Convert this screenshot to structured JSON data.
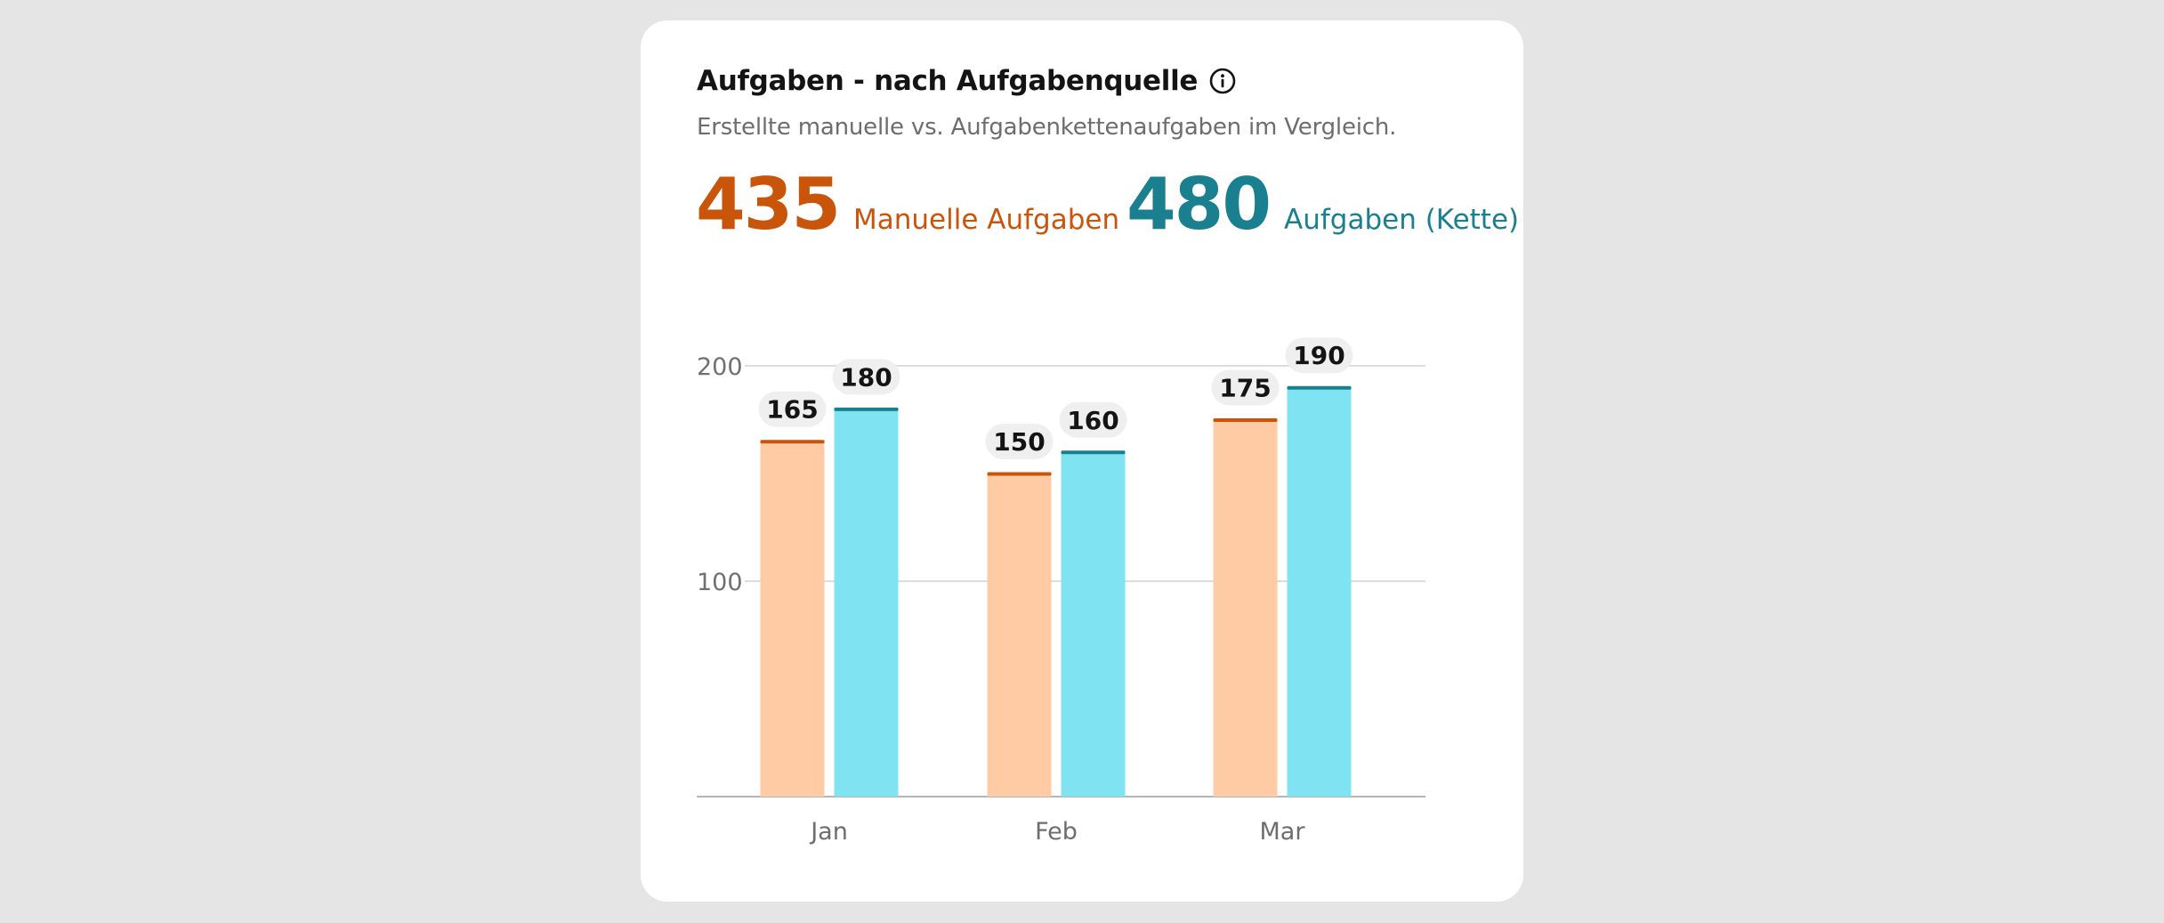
{
  "header": {
    "title": "Aufgaben - nach Aufgabenquelle",
    "subtitle": "Erstellte manuelle vs. Aufgabenkettenaufgaben im Vergleich."
  },
  "kpis": {
    "manual": {
      "value": "435",
      "label": "Manuelle Aufgaben",
      "color": "#c9550b"
    },
    "chain": {
      "value": "480",
      "label": "Aufgaben (Kette)",
      "color": "#1a7f8e"
    }
  },
  "icons": {
    "info": "info-circle-icon"
  },
  "chart_data": {
    "type": "bar",
    "categories": [
      "Jan",
      "Feb",
      "Mar"
    ],
    "series": [
      {
        "values": [
          165,
          150,
          175
        ],
        "fill": "#ffcba4",
        "stroke": "#c9550b"
      },
      {
        "values": [
          180,
          160,
          190
        ],
        "fill": "#7fe3f1",
        "stroke": "#1a7f8e"
      }
    ],
    "yticks": [
      100,
      200
    ],
    "ylim": [
      0,
      200
    ],
    "grid": true,
    "data_labels": true,
    "xlabel": "",
    "ylabel": ""
  }
}
